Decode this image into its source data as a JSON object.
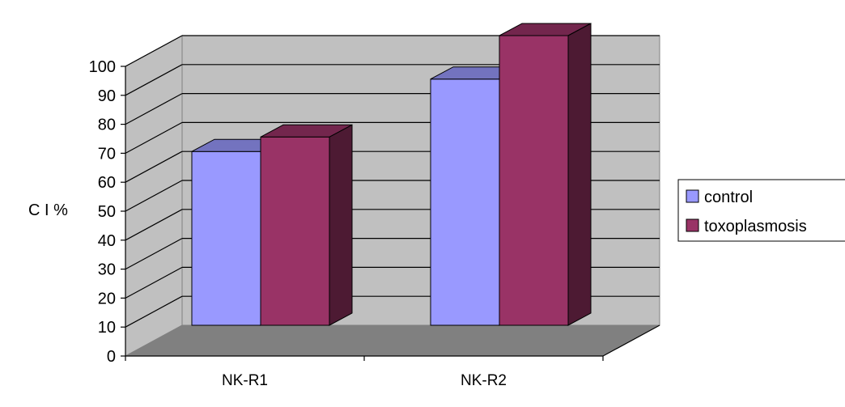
{
  "chart_data": {
    "type": "bar",
    "style": "3d-clustered-column",
    "categories": [
      "NK-R1",
      "NK-R2"
    ],
    "series": [
      {
        "name": "control",
        "values": [
          60,
          85
        ],
        "color": "#9999FF"
      },
      {
        "name": "toxoplasmosis",
        "values": [
          65,
          100
        ],
        "color": "#993366"
      }
    ],
    "ylabel": "C I %",
    "xlabel": "",
    "title": "",
    "ylim": [
      0,
      100
    ],
    "yticks": [
      0,
      10,
      20,
      30,
      40,
      50,
      60,
      70,
      80,
      90,
      100
    ],
    "grid": true,
    "legend_position": "right",
    "colors": {
      "wall": "#C0C0C0",
      "floor": "#808080",
      "gridline": "#000000"
    }
  }
}
